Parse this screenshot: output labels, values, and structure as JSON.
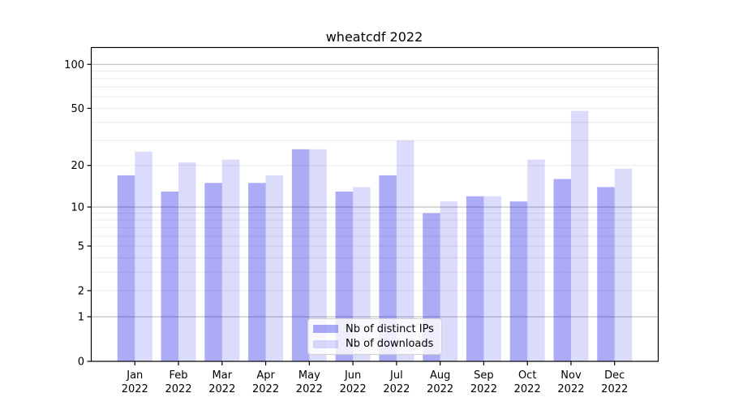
{
  "title": "wheatcdf 2022",
  "year": "2022",
  "months": [
    "Jan",
    "Feb",
    "Mar",
    "Apr",
    "May",
    "Jun",
    "Jul",
    "Aug",
    "Sep",
    "Oct",
    "Nov",
    "Dec"
  ],
  "legend": {
    "items": [
      {
        "label": "Nb of distinct IPs"
      },
      {
        "label": "Nb of downloads"
      }
    ]
  },
  "axis": {
    "y_tick_labels": [
      "100",
      "50",
      "20",
      "10",
      "5",
      "2",
      "1",
      "0"
    ],
    "y_tick_values": [
      100,
      50,
      20,
      10,
      5,
      2,
      1,
      0
    ],
    "grid_major_values": [
      1,
      10,
      100
    ],
    "grid_minor_values": [
      2,
      3,
      4,
      5,
      6,
      7,
      8,
      9,
      20,
      30,
      40,
      50,
      60,
      70,
      80,
      90
    ]
  },
  "colors": {
    "bar_distinct_ips": "rgba(13,13,230,0.35)",
    "bar_downloads": "rgba(13,13,230,0.15)",
    "grid_major": "#b3b3b3",
    "grid_minor": "#ebebeb",
    "axis": "#000000",
    "text": "#000000"
  },
  "chart_data": {
    "type": "bar",
    "title": "wheatcdf 2022",
    "categories": [
      "Jan 2022",
      "Feb 2022",
      "Mar 2022",
      "Apr 2022",
      "May 2022",
      "Jun 2022",
      "Jul 2022",
      "Aug 2022",
      "Sep 2022",
      "Oct 2022",
      "Nov 2022",
      "Dec 2022"
    ],
    "series": [
      {
        "name": "Nb of distinct IPs",
        "values": [
          17,
          13,
          15,
          15,
          26,
          13,
          17,
          9,
          12,
          11,
          16,
          14
        ]
      },
      {
        "name": "Nb of downloads",
        "values": [
          25,
          21,
          22,
          17,
          26,
          14,
          30,
          11,
          12,
          22,
          48,
          19
        ]
      }
    ],
    "yscale": "symlog ln(1+x)",
    "yticks": [
      0,
      1,
      2,
      5,
      10,
      20,
      50,
      100
    ],
    "ylim": [
      0,
      130
    ],
    "grid": true,
    "legend_position": "lower center"
  }
}
